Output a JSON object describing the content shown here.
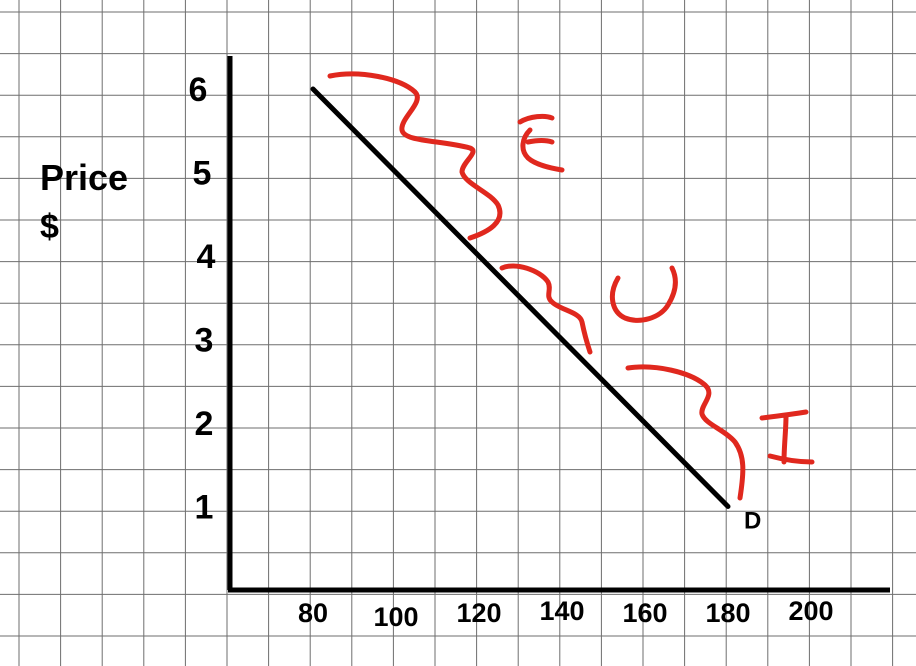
{
  "chart_data": {
    "type": "line",
    "title": "",
    "xlabel": "",
    "ylabel": "Price\n$",
    "ylabel_lines": [
      "Price",
      "$"
    ],
    "grid": true,
    "x_ticks": [
      "80",
      "100",
      "120",
      "140",
      "160",
      "180",
      "200"
    ],
    "y_ticks": [
      "1",
      "2",
      "3",
      "4",
      "5",
      "6"
    ],
    "xlim": [
      60,
      215
    ],
    "ylim": [
      0,
      6.4
    ],
    "series": [
      {
        "name": "D",
        "color": "#000000",
        "points": [
          {
            "x": 80,
            "y": 6
          },
          {
            "x": 180,
            "y": 1
          }
        ]
      }
    ],
    "annotations": [
      {
        "text": "E",
        "color": "#e0281e"
      },
      {
        "text": "U",
        "color": "#e0281e"
      },
      {
        "text": "I",
        "color": "#e0281e"
      }
    ]
  }
}
